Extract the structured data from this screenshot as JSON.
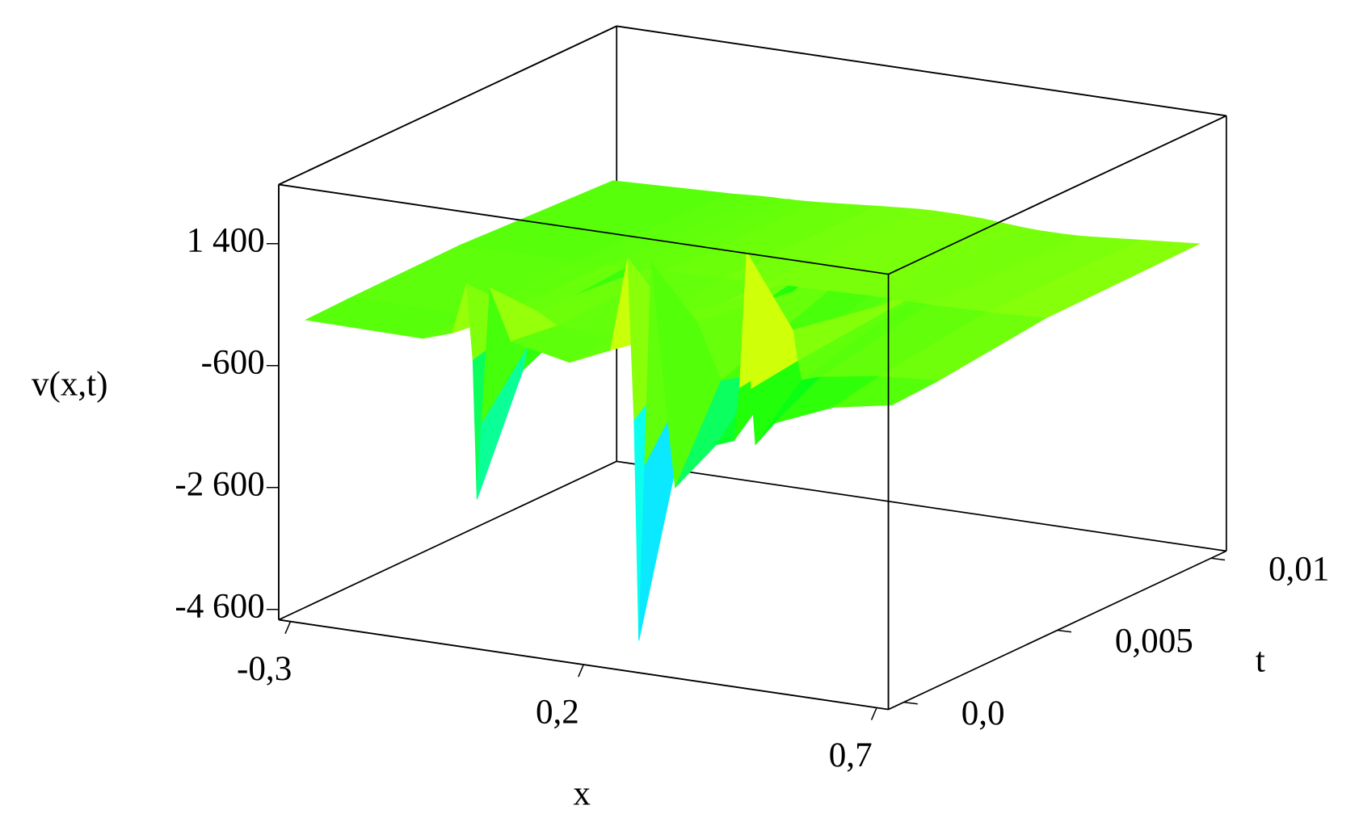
{
  "chart_data": {
    "type": "surface",
    "xlabel": "x",
    "tlabel": "t",
    "zlabel": "v(x,t)",
    "xlim": [
      -0.32,
      0.72
    ],
    "tlim": [
      -0.0005,
      0.0105
    ],
    "zlim": [
      -4770,
      2370
    ],
    "xticks": [
      {
        "value": -0.3,
        "label": "-0,3"
      },
      {
        "value": 0.2,
        "label": "0,2"
      },
      {
        "value": 0.7,
        "label": "0,7"
      }
    ],
    "tticks": [
      {
        "value": 0,
        "label": "0,0"
      },
      {
        "value": 0.005,
        "label": "0,005"
      },
      {
        "value": 0.01,
        "label": "0,01"
      }
    ],
    "zticks": [
      {
        "value": 1400,
        "label": "1 400"
      },
      {
        "value": -600,
        "label": "-600"
      },
      {
        "value": -2600,
        "label": "-2 600"
      },
      {
        "value": -4600,
        "label": "-4 600"
      }
    ],
    "x": [
      -0.3,
      -0.1,
      -0.05,
      -0.026,
      -0.015,
      -0.008,
      0.0,
      0.014,
      0.05,
      0.15,
      0.22,
      0.249,
      0.26,
      0.268,
      0.278,
      0.289,
      0.33,
      0.4,
      0.43,
      0.44,
      0.452,
      0.46,
      0.467,
      0.5,
      0.6,
      0.7
    ],
    "t": [
      0,
      0.0015,
      0.005,
      0.01
    ],
    "z": [
      [
        60,
        40,
        200,
        1040,
        -200,
        -2470,
        -1200,
        1030,
        200,
        0,
        300,
        1850,
        -800,
        -4400,
        -1500,
        1840,
        -1800,
        -1000,
        -890,
        0,
        2230,
        0,
        -900,
        -500,
        -100,
        80
      ],
      [
        80,
        60,
        100,
        300,
        0,
        -700,
        -300,
        300,
        100,
        50,
        150,
        500,
        -200,
        -1200,
        -400,
        500,
        -400,
        -200,
        -200,
        100,
        600,
        100,
        -200,
        -100,
        50,
        120
      ],
      [
        100,
        120,
        130,
        140,
        140,
        140,
        150,
        150,
        160,
        200,
        220,
        230,
        230,
        230,
        230,
        230,
        240,
        260,
        260,
        260,
        260,
        260,
        260,
        260,
        280,
        320
      ],
      [
        -20,
        50,
        80,
        90,
        90,
        90,
        100,
        100,
        120,
        200,
        250,
        260,
        260,
        260,
        260,
        260,
        250,
        200,
        190,
        190,
        190,
        190,
        190,
        200,
        280,
        360
      ]
    ]
  }
}
